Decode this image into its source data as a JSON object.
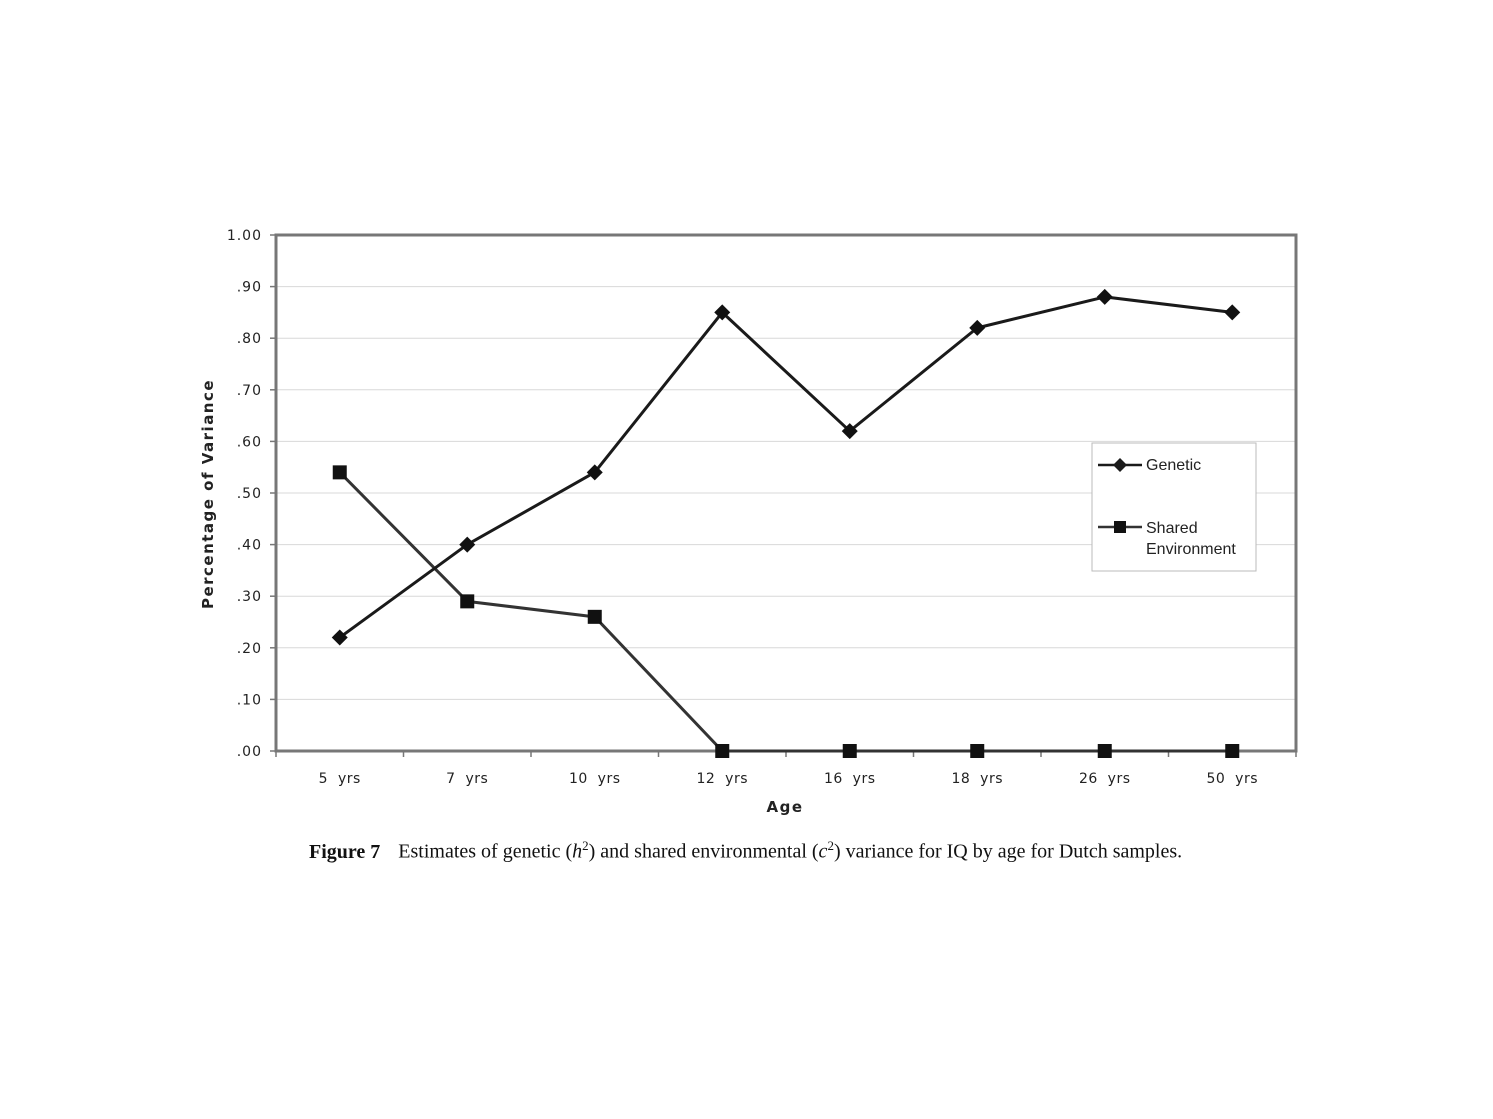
{
  "chart_data": {
    "type": "line",
    "ylabel": "Percentage of Variance",
    "xlabel": "Age",
    "ylim": [
      0,
      1
    ],
    "y_tick_labels": [
      "1.00",
      ".90",
      ".80",
      ".70",
      ".60",
      ".50",
      ".40",
      ".30",
      ".20",
      ".10",
      ".00"
    ],
    "y_tick_values": [
      1.0,
      0.9,
      0.8,
      0.7,
      0.6,
      0.5,
      0.4,
      0.3,
      0.2,
      0.1,
      0.0
    ],
    "categories": [
      "5 yrs",
      "7 yrs",
      "10 yrs",
      "12 yrs",
      "16 yrs",
      "18 yrs",
      "26 yrs",
      "50 yrs"
    ],
    "grid": true,
    "legend_position": "right",
    "series": [
      {
        "name": "Genetic",
        "marker": "diamond",
        "color": "#1a1a1a",
        "values": [
          0.22,
          0.4,
          0.54,
          0.85,
          0.62,
          0.82,
          0.88,
          0.85
        ]
      },
      {
        "name": "Shared Environment",
        "marker": "square",
        "color": "#333333",
        "values": [
          0.54,
          0.29,
          0.26,
          0.0,
          0.0,
          0.0,
          0.0,
          0.0
        ]
      }
    ]
  },
  "caption": {
    "label": "Figure 7",
    "text_before_h": "Estimates of genetic (",
    "h_symbol": "h",
    "sup_h": "2",
    "text_middle": ") and shared environmental (",
    "c_symbol": "c",
    "sup_c": "2",
    "text_after": ") variance for IQ by age for Dutch samples."
  }
}
